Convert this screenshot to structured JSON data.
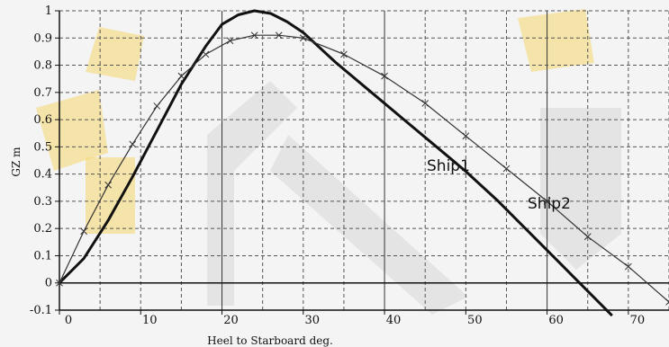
{
  "chart_data": {
    "type": "line",
    "xlabel": "Heel to Starboard deg.",
    "ylabel": "GZ m",
    "xlim": [
      0,
      75
    ],
    "ylim": [
      -0.1,
      1.0
    ],
    "x_ticks": [
      0,
      10,
      20,
      30,
      40,
      50,
      60,
      70
    ],
    "y_ticks": [
      -0.1,
      0,
      0.1,
      0.2,
      0.3,
      0.4,
      0.5,
      0.6,
      0.7,
      0.8,
      0.9,
      1
    ],
    "grid": true,
    "series": [
      {
        "name": "Ship1",
        "color": "#111111",
        "style": "thick",
        "x": [
          0,
          3,
          6,
          9,
          12,
          15,
          18,
          20,
          22,
          24,
          26,
          28,
          30,
          34,
          38,
          42,
          46,
          50,
          54,
          58,
          62,
          66,
          68
        ],
        "y": [
          0,
          0.09,
          0.23,
          0.39,
          0.56,
          0.73,
          0.87,
          0.95,
          0.985,
          1.0,
          0.99,
          0.96,
          0.92,
          0.81,
          0.71,
          0.61,
          0.51,
          0.41,
          0.3,
          0.18,
          0.06,
          -0.06,
          -0.12
        ]
      },
      {
        "name": "Ship2",
        "color": "#333333",
        "style": "thin-marked",
        "x": [
          0,
          3,
          6,
          9,
          12,
          15,
          18,
          21,
          24,
          27,
          30,
          35,
          40,
          45,
          50,
          55,
          60,
          65,
          70,
          75
        ],
        "y": [
          0,
          0.19,
          0.36,
          0.51,
          0.65,
          0.76,
          0.84,
          0.89,
          0.91,
          0.91,
          0.9,
          0.84,
          0.76,
          0.66,
          0.54,
          0.42,
          0.3,
          0.17,
          0.06,
          -0.07
        ]
      }
    ]
  }
}
